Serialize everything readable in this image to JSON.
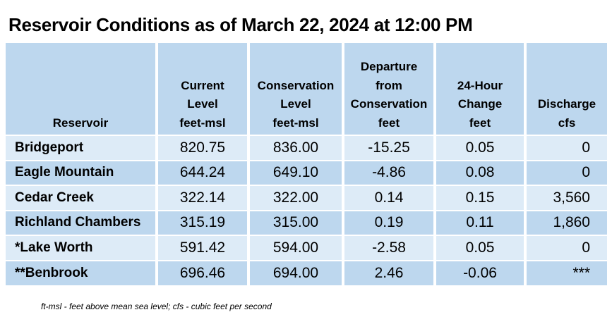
{
  "title": "Reservoir Conditions as of March 22, 2024 at 12:00 PM",
  "columns": [
    {
      "lines": [
        "Reservoir"
      ]
    },
    {
      "lines": [
        "Current",
        "Level",
        "feet-msl"
      ]
    },
    {
      "lines": [
        "Conservation",
        "Level",
        "feet-msl"
      ]
    },
    {
      "lines": [
        "Departure",
        "from",
        "Conservation",
        "feet"
      ]
    },
    {
      "lines": [
        "24-Hour",
        "Change",
        "feet"
      ]
    },
    {
      "lines": [
        "Discharge",
        "cfs"
      ]
    }
  ],
  "rows": [
    {
      "reservoir": "Bridgeport",
      "current_level": "820.75",
      "conservation_level": "836.00",
      "departure": "-15.25",
      "change_24h": "0.05",
      "discharge": "0"
    },
    {
      "reservoir": "Eagle Mountain",
      "current_level": "644.24",
      "conservation_level": "649.10",
      "departure": "-4.86",
      "change_24h": "0.08",
      "discharge": "0"
    },
    {
      "reservoir": "Cedar Creek",
      "current_level": "322.14",
      "conservation_level": "322.00",
      "departure": "0.14",
      "change_24h": "0.15",
      "discharge": "3,560"
    },
    {
      "reservoir": "Richland Chambers",
      "current_level": "315.19",
      "conservation_level": "315.00",
      "departure": "0.19",
      "change_24h": "0.11",
      "discharge": "1,860"
    },
    {
      "reservoir": "*Lake Worth",
      "current_level": "591.42",
      "conservation_level": "594.00",
      "departure": "-2.58",
      "change_24h": "0.05",
      "discharge": "0"
    },
    {
      "reservoir": "**Benbrook",
      "current_level": "696.46",
      "conservation_level": "694.00",
      "departure": "2.46",
      "change_24h": "-0.06",
      "discharge": "***"
    }
  ],
  "footnote": "ft-msl - feet above mean sea level; cfs - cubic feet per second",
  "colors": {
    "header_bg": "#bdd7ee",
    "row_light": "#ddebf7",
    "row_dark": "#bdd7ee"
  }
}
